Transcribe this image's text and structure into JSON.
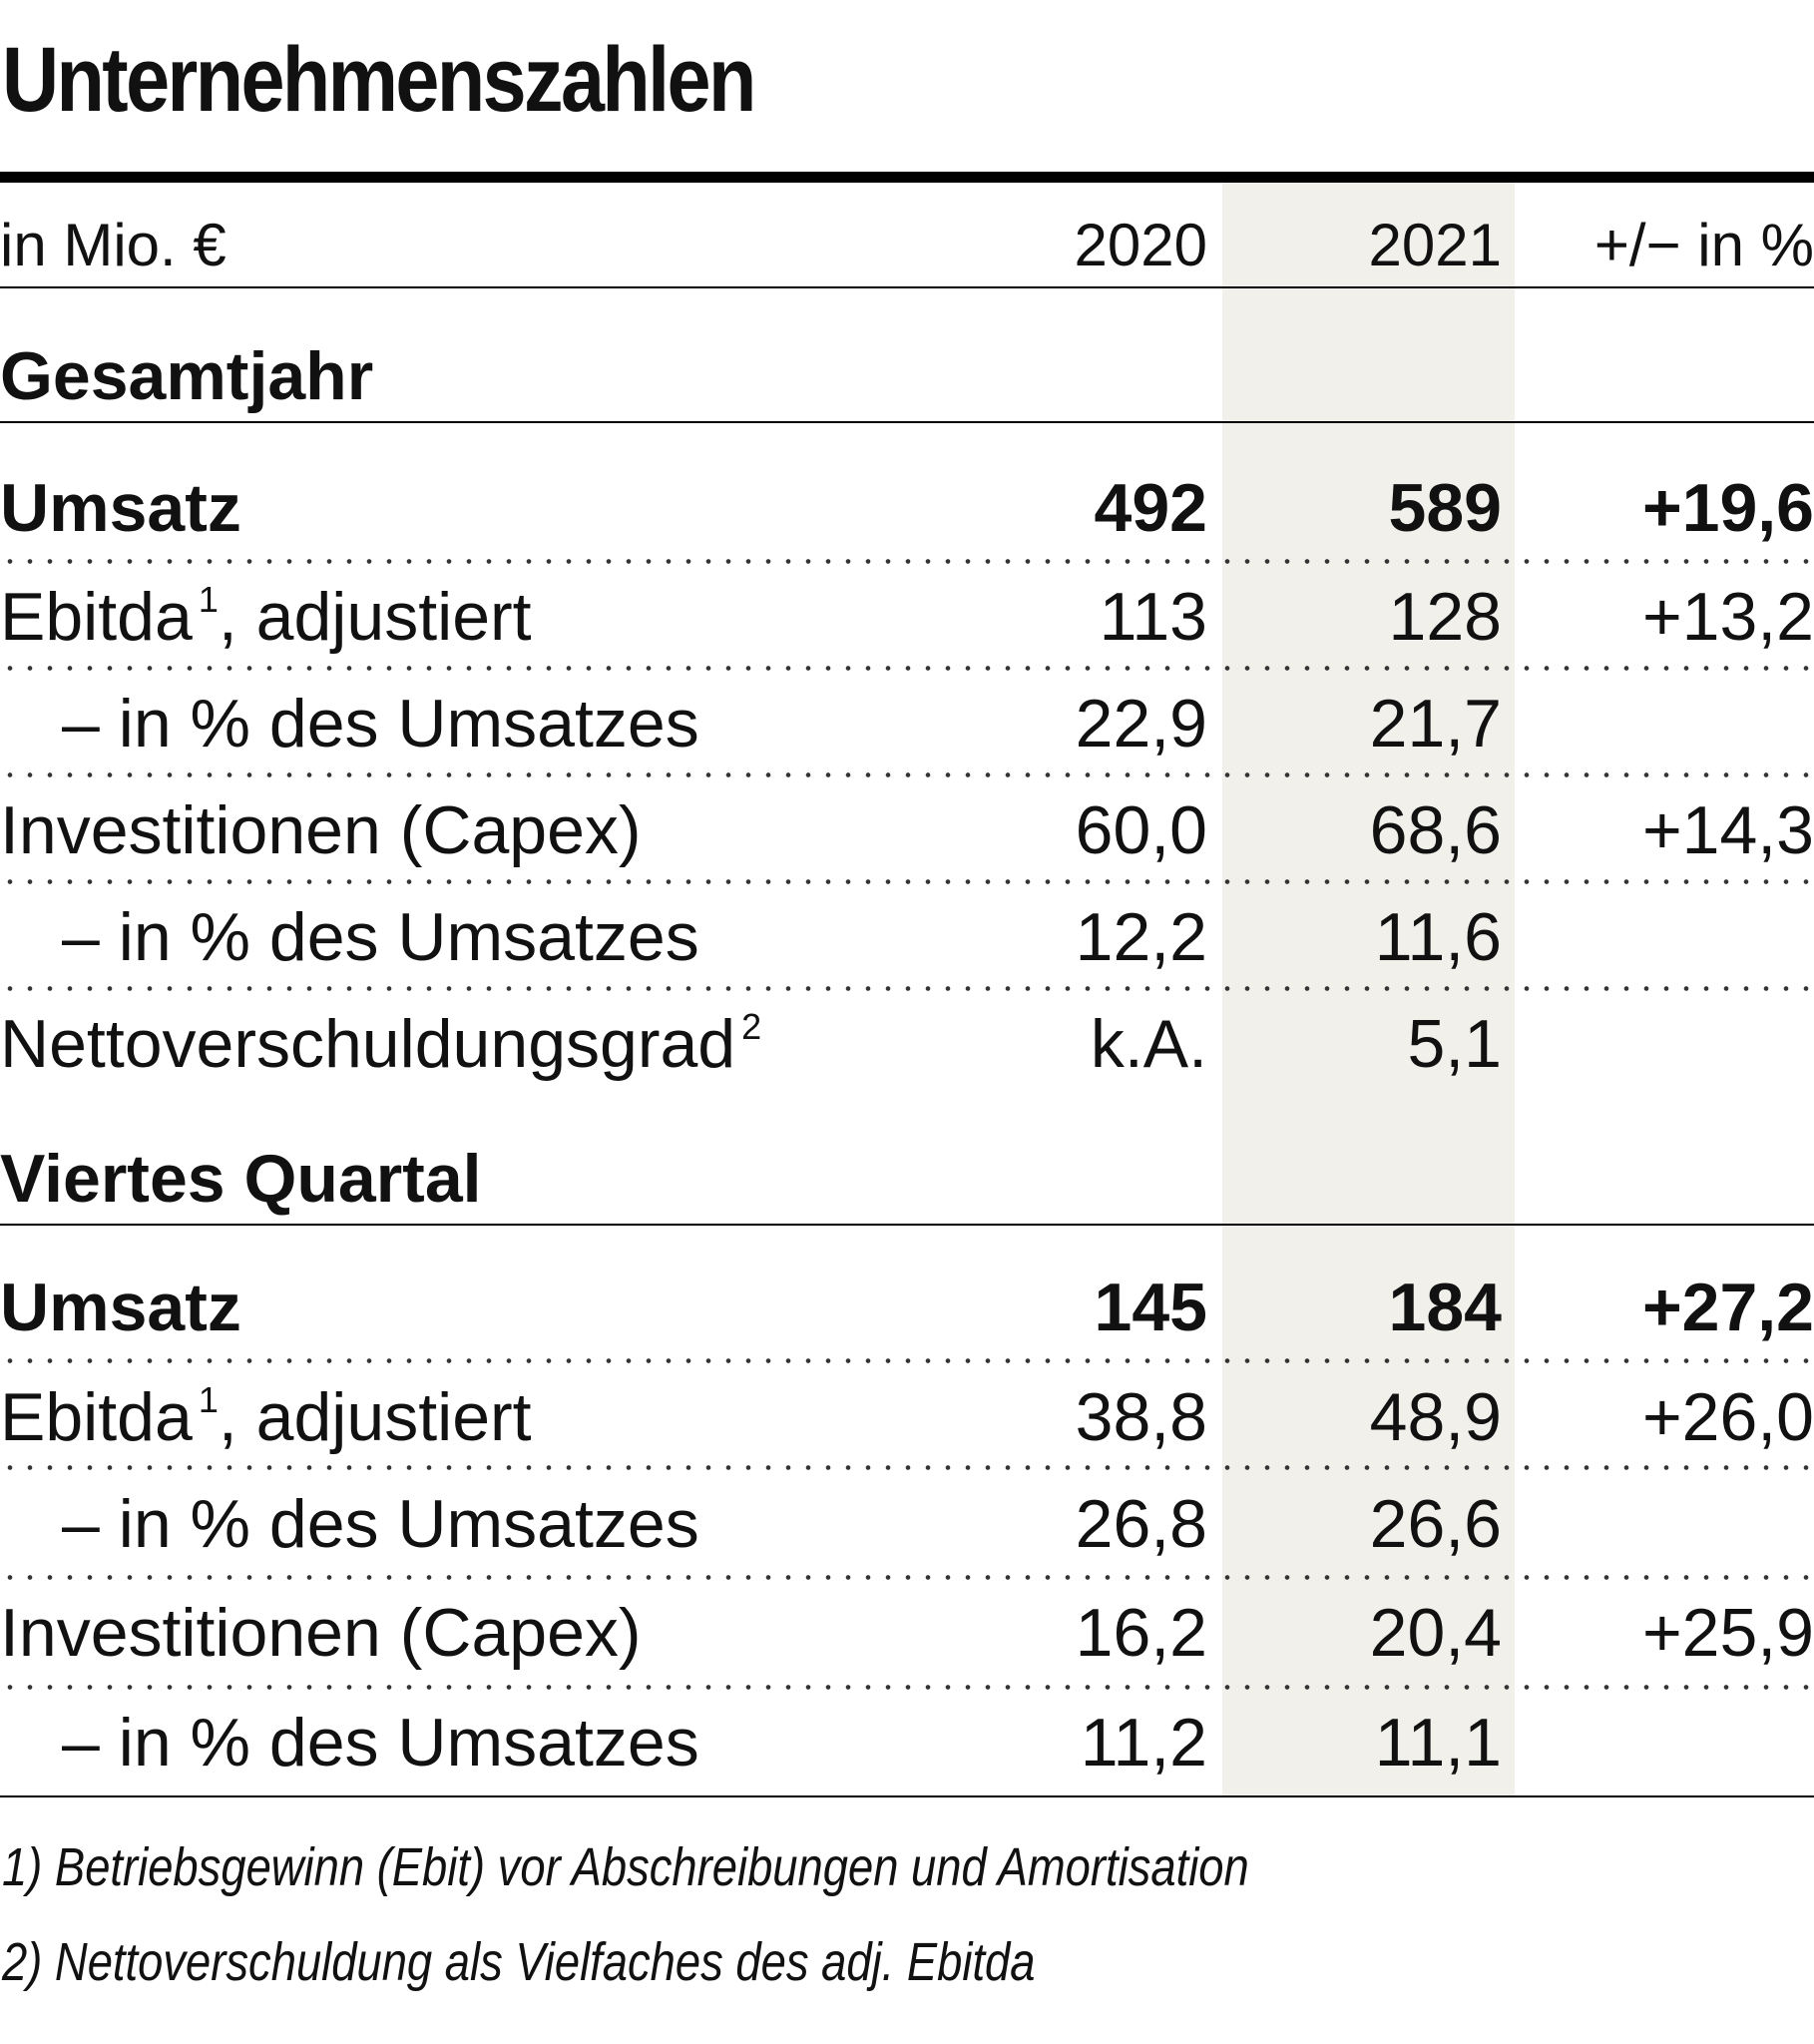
{
  "title": "Unternehmenszahlen",
  "header": {
    "unit": "in Mio. €",
    "col_2020": "2020",
    "col_2021": "2021",
    "col_change": "+/−  in %"
  },
  "sections": [
    {
      "title": "Gesamtjahr",
      "rows": [
        {
          "label": "Umsatz",
          "v2020": "492",
          "v2021": "589",
          "change": "+19,6",
          "bold": true
        },
        {
          "label": "Ebitda",
          "sup": "1",
          "label_rest": ", adjustiert",
          "v2020": "113",
          "v2021": "128",
          "change": "+13,2"
        },
        {
          "label": "– in % des Umsatzes",
          "indent": true,
          "v2020": "22,9",
          "v2021": "21,7",
          "change": ""
        },
        {
          "label": "Investitionen (Capex)",
          "v2020": "60,0",
          "v2021": "68,6",
          "change": "+14,3"
        },
        {
          "label": "– in % des Umsatzes",
          "indent": true,
          "v2020": "12,2",
          "v2021": "11,6",
          "change": ""
        },
        {
          "label": "Nettoverschuldungsgrad",
          "sup": "2",
          "v2020": "k.A.",
          "v2021": "5,1",
          "change": ""
        }
      ]
    },
    {
      "title": "Viertes Quartal",
      "rows": [
        {
          "label": "Umsatz",
          "v2020": "145",
          "v2021": "184",
          "change": "+27,2",
          "bold": true
        },
        {
          "label": "Ebitda",
          "sup": "1",
          "label_rest": ", adjustiert",
          "v2020": "38,8",
          "v2021": "48,9",
          "change": "+26,0"
        },
        {
          "label": "– in % des Umsatzes",
          "indent": true,
          "v2020": "26,8",
          "v2021": "26,6",
          "change": ""
        },
        {
          "label": "Investitionen (Capex)",
          "v2020": "16,2",
          "v2021": "20,4",
          "change": "+25,9"
        },
        {
          "label": "– in % des Umsatzes",
          "indent": true,
          "v2020": "11,2",
          "v2021": "11,1",
          "change": ""
        }
      ]
    }
  ],
  "footnotes": [
    "1) Betriebsgewinn (Ebit) vor Abschreibungen und Amortisation",
    "2) Nettoverschuldung als Vielfaches des adj. Ebitda"
  ],
  "colors": {
    "shade": "#f1f0eb",
    "text": "#111111"
  }
}
